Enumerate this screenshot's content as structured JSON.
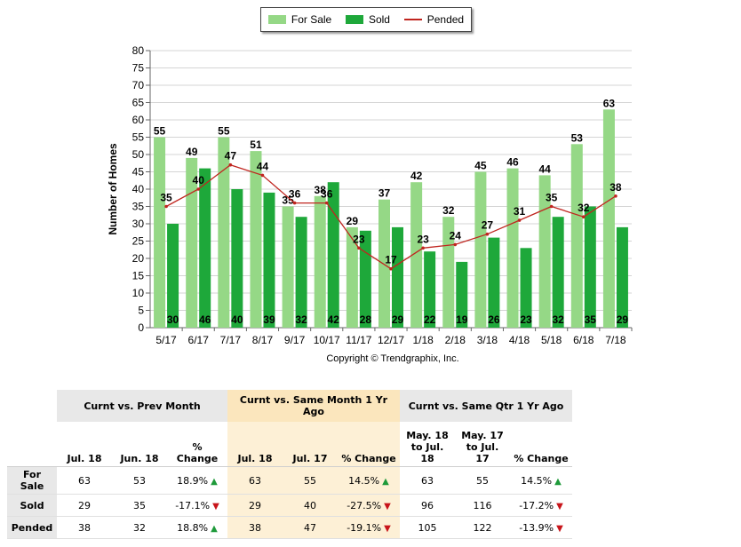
{
  "legend": {
    "for_sale": "For Sale",
    "sold": "Sold",
    "pended": "Pended",
    "colors": {
      "for_sale": "#95d886",
      "sold": "#1ea83a",
      "pended": "#c0251f"
    }
  },
  "chart_data": {
    "type": "bar",
    "title": "",
    "xlabel": "",
    "ylabel": "Number of Homes",
    "ylim": [
      0,
      80
    ],
    "ytick_step": 5,
    "grid": true,
    "legend_position": "top",
    "categories": [
      "5/17",
      "6/17",
      "7/17",
      "8/17",
      "9/17",
      "10/17",
      "11/17",
      "12/17",
      "1/18",
      "2/18",
      "3/18",
      "4/18",
      "5/18",
      "6/18",
      "7/18"
    ],
    "series": [
      {
        "name": "For Sale",
        "type": "bar",
        "values": [
          55,
          49,
          55,
          51,
          35,
          38,
          29,
          37,
          42,
          32,
          45,
          46,
          44,
          53,
          63
        ]
      },
      {
        "name": "Sold",
        "type": "bar",
        "values": [
          30,
          46,
          40,
          39,
          32,
          42,
          28,
          29,
          22,
          19,
          26,
          23,
          32,
          35,
          29
        ]
      },
      {
        "name": "Pended",
        "type": "line",
        "values": [
          35,
          40,
          47,
          44,
          36,
          36,
          23,
          17,
          23,
          24,
          27,
          31,
          35,
          32,
          38
        ]
      }
    ]
  },
  "copyright": "Copyright © Trendgraphix, Inc.",
  "summary": {
    "groups": [
      "Curnt vs. Prev Month",
      "Curnt vs. Same Month 1 Yr Ago",
      "Curnt vs. Same Qtr 1 Yr Ago"
    ],
    "subheaders": [
      "Jul. 18",
      "Jun. 18",
      "% Change",
      "Jul. 18",
      "Jul. 17",
      "% Change",
      "May. 18 to Jul. 18",
      "May. 17 to Jul. 17",
      "% Change"
    ],
    "rows": [
      {
        "label": "For Sale",
        "cells": [
          "63",
          "53",
          "18.9%",
          "63",
          "55",
          "14.5%",
          "63",
          "55",
          "14.5%"
        ],
        "dirs": [
          "up",
          "up",
          "up"
        ]
      },
      {
        "label": "Sold",
        "cells": [
          "29",
          "35",
          "-17.1%",
          "29",
          "40",
          "-27.5%",
          "96",
          "116",
          "-17.2%"
        ],
        "dirs": [
          "down",
          "down",
          "down"
        ]
      },
      {
        "label": "Pended",
        "cells": [
          "38",
          "32",
          "18.8%",
          "38",
          "47",
          "-19.1%",
          "105",
          "122",
          "-13.9%"
        ],
        "dirs": [
          "up",
          "down",
          "down"
        ]
      }
    ]
  }
}
